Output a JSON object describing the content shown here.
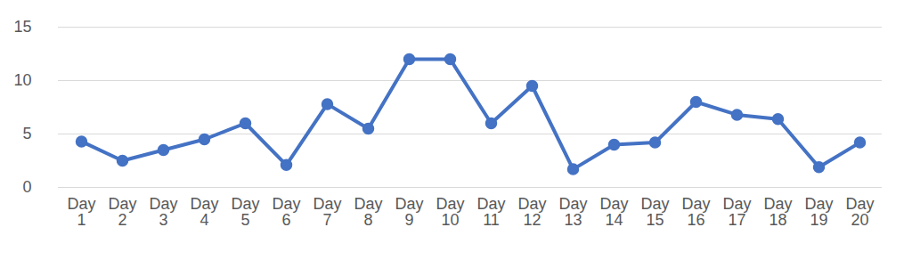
{
  "chart_data": {
    "type": "line",
    "categories": [
      "Day 1",
      "Day 2",
      "Day 3",
      "Day 4",
      "Day 5",
      "Day 6",
      "Day 7",
      "Day 8",
      "Day 9",
      "Day 10",
      "Day 11",
      "Day 12",
      "Day 13",
      "Day 14",
      "Day 15",
      "Day 16",
      "Day 17",
      "Day 18",
      "Day 19",
      "Day 20"
    ],
    "values": [
      4.3,
      2.5,
      3.5,
      4.5,
      6,
      2.1,
      7.8,
      5.5,
      12,
      12,
      6,
      9.5,
      1.7,
      4,
      4.2,
      8,
      6.8,
      6.4,
      1.9,
      4.2
    ],
    "color": "#4472c4",
    "marker": "circle",
    "ylim": [
      0,
      15
    ],
    "yticks": [
      0,
      5,
      10,
      15
    ],
    "grid": true
  }
}
